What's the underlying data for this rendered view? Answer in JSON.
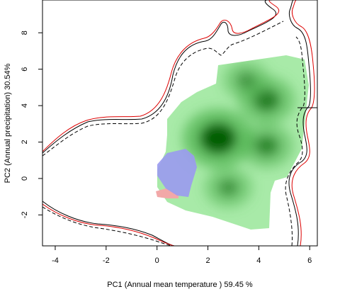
{
  "chart_data": {
    "type": "heatmap",
    "xlabel": "PC1 (Annual mean temperature ) 59.45 %",
    "ylabel": "PC2 (Annual precipitation) 30.54%",
    "xlim": [
      -4.5,
      6.3
    ],
    "ylim": [
      -3.7,
      9.8
    ],
    "xticks": [
      -4,
      -2,
      0,
      2,
      4,
      6
    ],
    "yticks": [
      -2,
      0,
      2,
      4,
      6,
      8
    ],
    "density_peaks": [
      {
        "x": 2.4,
        "y": 2.2,
        "weight": 1.0
      },
      {
        "x": 4.3,
        "y": 4.3,
        "weight": 0.6
      },
      {
        "x": 4.3,
        "y": 1.8,
        "weight": 0.5
      },
      {
        "x": 2.8,
        "y": -0.5,
        "weight": 0.35
      },
      {
        "x": 3.5,
        "y": 5.4,
        "weight": 0.3
      }
    ],
    "colors": {
      "background_region": "#a8eaa8",
      "peak_region": "#005a00",
      "overlap_region": "#9a9af0",
      "pink_region": "#f2a8a8",
      "outer_contour": "#000000",
      "red_contour": "#dd0000"
    },
    "grid": false,
    "legend": "none"
  }
}
